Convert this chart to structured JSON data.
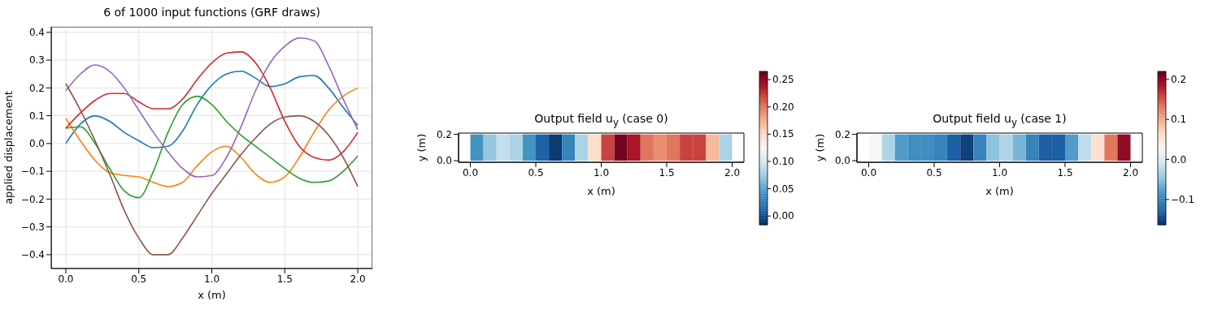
{
  "chart_data": [
    {
      "type": "line",
      "title": "6 of 1000 input functions (GRF draws)",
      "xlabel": "x (m)",
      "ylabel": "applied displacement",
      "x": [
        0,
        0.1,
        0.2,
        0.3,
        0.4,
        0.5,
        0.6,
        0.7,
        0.8,
        0.9,
        1.0,
        1.1,
        1.2,
        1.3,
        1.4,
        1.5,
        1.6,
        1.7,
        1.8,
        1.9,
        2.0
      ],
      "series": [
        {
          "color": "#1f77b4",
          "values": [
            0.0,
            0.07,
            0.1,
            0.08,
            0.04,
            0.01,
            -0.015,
            -0.01,
            0.045,
            0.14,
            0.21,
            0.25,
            0.26,
            0.235,
            0.205,
            0.215,
            0.24,
            0.245,
            0.2,
            0.13,
            0.065
          ]
        },
        {
          "color": "#ff7f0e",
          "values": [
            0.09,
            0.01,
            -0.06,
            -0.105,
            -0.115,
            -0.12,
            -0.14,
            -0.155,
            -0.14,
            -0.08,
            -0.03,
            -0.01,
            -0.05,
            -0.11,
            -0.14,
            -0.12,
            -0.05,
            0.04,
            0.12,
            0.17,
            0.2
          ]
        },
        {
          "color": "#2ca02c",
          "values": [
            0.055,
            0.06,
            0.0,
            -0.09,
            -0.17,
            -0.195,
            -0.1,
            0.04,
            0.14,
            0.17,
            0.14,
            0.08,
            0.03,
            -0.01,
            -0.05,
            -0.09,
            -0.125,
            -0.14,
            -0.135,
            -0.1,
            -0.045
          ]
        },
        {
          "color": "#d62728",
          "values": [
            0.055,
            0.11,
            0.155,
            0.18,
            0.18,
            0.15,
            0.125,
            0.125,
            0.16,
            0.23,
            0.29,
            0.325,
            0.33,
            0.29,
            0.2,
            0.08,
            -0.01,
            -0.05,
            -0.06,
            -0.03,
            0.04
          ]
        },
        {
          "color": "#9467bd",
          "values": [
            0.19,
            0.25,
            0.283,
            0.26,
            0.2,
            0.12,
            0.04,
            -0.03,
            -0.09,
            -0.12,
            -0.115,
            -0.05,
            0.06,
            0.19,
            0.29,
            0.35,
            0.38,
            0.37,
            0.28,
            0.16,
            0.05
          ]
        },
        {
          "color": "#8c564b",
          "values": [
            0.215,
            0.12,
            0.01,
            -0.11,
            -0.24,
            -0.34,
            -0.4,
            -0.4,
            -0.34,
            -0.26,
            -0.18,
            -0.11,
            -0.04,
            0.02,
            0.07,
            0.095,
            0.1,
            0.08,
            0.03,
            -0.05,
            -0.155
          ]
        }
      ],
      "xlim": [
        -0.1,
        2.1
      ],
      "xticks": [
        {
          "value": 0,
          "label": "0.0"
        },
        {
          "value": 0.5,
          "label": "0.5"
        },
        {
          "value": 1,
          "label": "1.0"
        },
        {
          "value": 1.5,
          "label": "1.5"
        },
        {
          "value": 2,
          "label": "2.0"
        }
      ],
      "ylim": [
        -0.45,
        0.42
      ],
      "yticks": [
        {
          "value": -0.4,
          "label": "−0.4"
        },
        {
          "value": -0.3,
          "label": "−0.3"
        },
        {
          "value": -0.2,
          "label": "−0.2"
        },
        {
          "value": -0.1,
          "label": "−0.1"
        },
        {
          "value": 0,
          "label": "0.0"
        },
        {
          "value": 0.1,
          "label": "0.1"
        },
        {
          "value": 0.2,
          "label": "0.2"
        },
        {
          "value": 0.3,
          "label": "0.3"
        },
        {
          "value": 0.4,
          "label": "0.4"
        }
      ],
      "grid": true
    },
    {
      "type": "heatmap",
      "title": "Output field u$_{y}$ (case 0)",
      "xlabel": "x (m)",
      "ylabel": "y (m)",
      "x": [
        0.05,
        0.15,
        0.25,
        0.35,
        0.45,
        0.55,
        0.65,
        0.75,
        0.85,
        0.95,
        1.05,
        1.15,
        1.25,
        1.35,
        1.45,
        1.55,
        1.65,
        1.75,
        1.85,
        1.95
      ],
      "cells": [
        [
          0.04,
          0.07,
          0.09,
          0.08,
          0.04,
          0.01,
          -0.01,
          0.03,
          0.08,
          0.15,
          0.22,
          0.26,
          0.24,
          0.2,
          0.19,
          0.2,
          0.22,
          0.22,
          0.17,
          0.08
        ]
      ],
      "xlim": [
        -0.09,
        2.09
      ],
      "xticks": [
        {
          "value": 0,
          "label": "0.0"
        },
        {
          "value": 0.5,
          "label": "0.5"
        },
        {
          "value": 1,
          "label": "1.0"
        },
        {
          "value": 1.5,
          "label": "1.5"
        },
        {
          "value": 2,
          "label": "2.0"
        }
      ],
      "ylim": [
        -0.012,
        0.21
      ],
      "yticks": [
        {
          "value": 0,
          "label": "0.0"
        },
        {
          "value": 0.2,
          "label": "0.2"
        }
      ],
      "clim": [
        -0.016,
        0.265
      ],
      "cticks": [
        {
          "value": 0,
          "label": "0.00"
        },
        {
          "value": 0.05,
          "label": "0.05"
        },
        {
          "value": 0.1,
          "label": "0.10"
        },
        {
          "value": 0.15,
          "label": "0.15"
        },
        {
          "value": 0.2,
          "label": "0.20"
        },
        {
          "value": 0.25,
          "label": "0.25"
        }
      ]
    },
    {
      "type": "heatmap",
      "title": "Output field u$_{y}$ (case 1)",
      "xlabel": "x (m)",
      "ylabel": "y (m)",
      "x": [
        0.05,
        0.15,
        0.25,
        0.35,
        0.45,
        0.55,
        0.65,
        0.75,
        0.85,
        0.95,
        1.05,
        1.15,
        1.25,
        1.35,
        1.45,
        1.55,
        1.65,
        1.75,
        1.85,
        1.95
      ],
      "cells": [
        [
          0.03,
          -0.03,
          -0.08,
          -0.09,
          -0.09,
          -0.1,
          -0.13,
          -0.15,
          -0.1,
          -0.05,
          -0.03,
          -0.06,
          -0.1,
          -0.13,
          -0.13,
          -0.08,
          -0.02,
          0.06,
          0.13,
          0.2
        ]
      ],
      "xlim": [
        -0.09,
        2.09
      ],
      "xticks": [
        {
          "value": 0,
          "label": "0.0"
        },
        {
          "value": 0.5,
          "label": "0.5"
        },
        {
          "value": 1,
          "label": "1.0"
        },
        {
          "value": 1.5,
          "label": "1.5"
        },
        {
          "value": 2,
          "label": "2.0"
        }
      ],
      "ylim": [
        -0.012,
        0.21
      ],
      "yticks": [
        {
          "value": 0,
          "label": "0.0"
        },
        {
          "value": 0.2,
          "label": "0.2"
        }
      ],
      "clim": [
        -0.163,
        0.22
      ],
      "cticks": [
        {
          "value": -0.1,
          "label": "−0.1"
        },
        {
          "value": 0,
          "label": "0.0"
        },
        {
          "value": 0.1,
          "label": "0.1"
        },
        {
          "value": 0.2,
          "label": "0.2"
        }
      ]
    }
  ]
}
